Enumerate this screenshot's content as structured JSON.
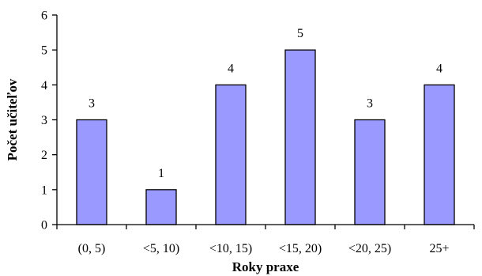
{
  "chart_data": {
    "type": "bar",
    "categories": [
      "(0, 5)",
      "<5, 10)",
      "<10, 15)",
      "<15, 20)",
      "<20, 25)",
      "25+"
    ],
    "values": [
      3,
      1,
      4,
      5,
      3,
      4
    ],
    "data_labels": [
      "3",
      "1",
      "4",
      "5",
      "3",
      "4"
    ],
    "title": "",
    "xlabel": "Roky praxe",
    "ylabel": "Počet učiteľov",
    "ylim": [
      0,
      6
    ],
    "yticks": [
      "0",
      "1",
      "2",
      "3",
      "4",
      "5",
      "6"
    ],
    "grid": false,
    "legend": "none",
    "colors": {
      "bar_fill": "#9999ff",
      "bar_stroke": "#000000",
      "axis": "#000000",
      "text": "#000000"
    }
  }
}
